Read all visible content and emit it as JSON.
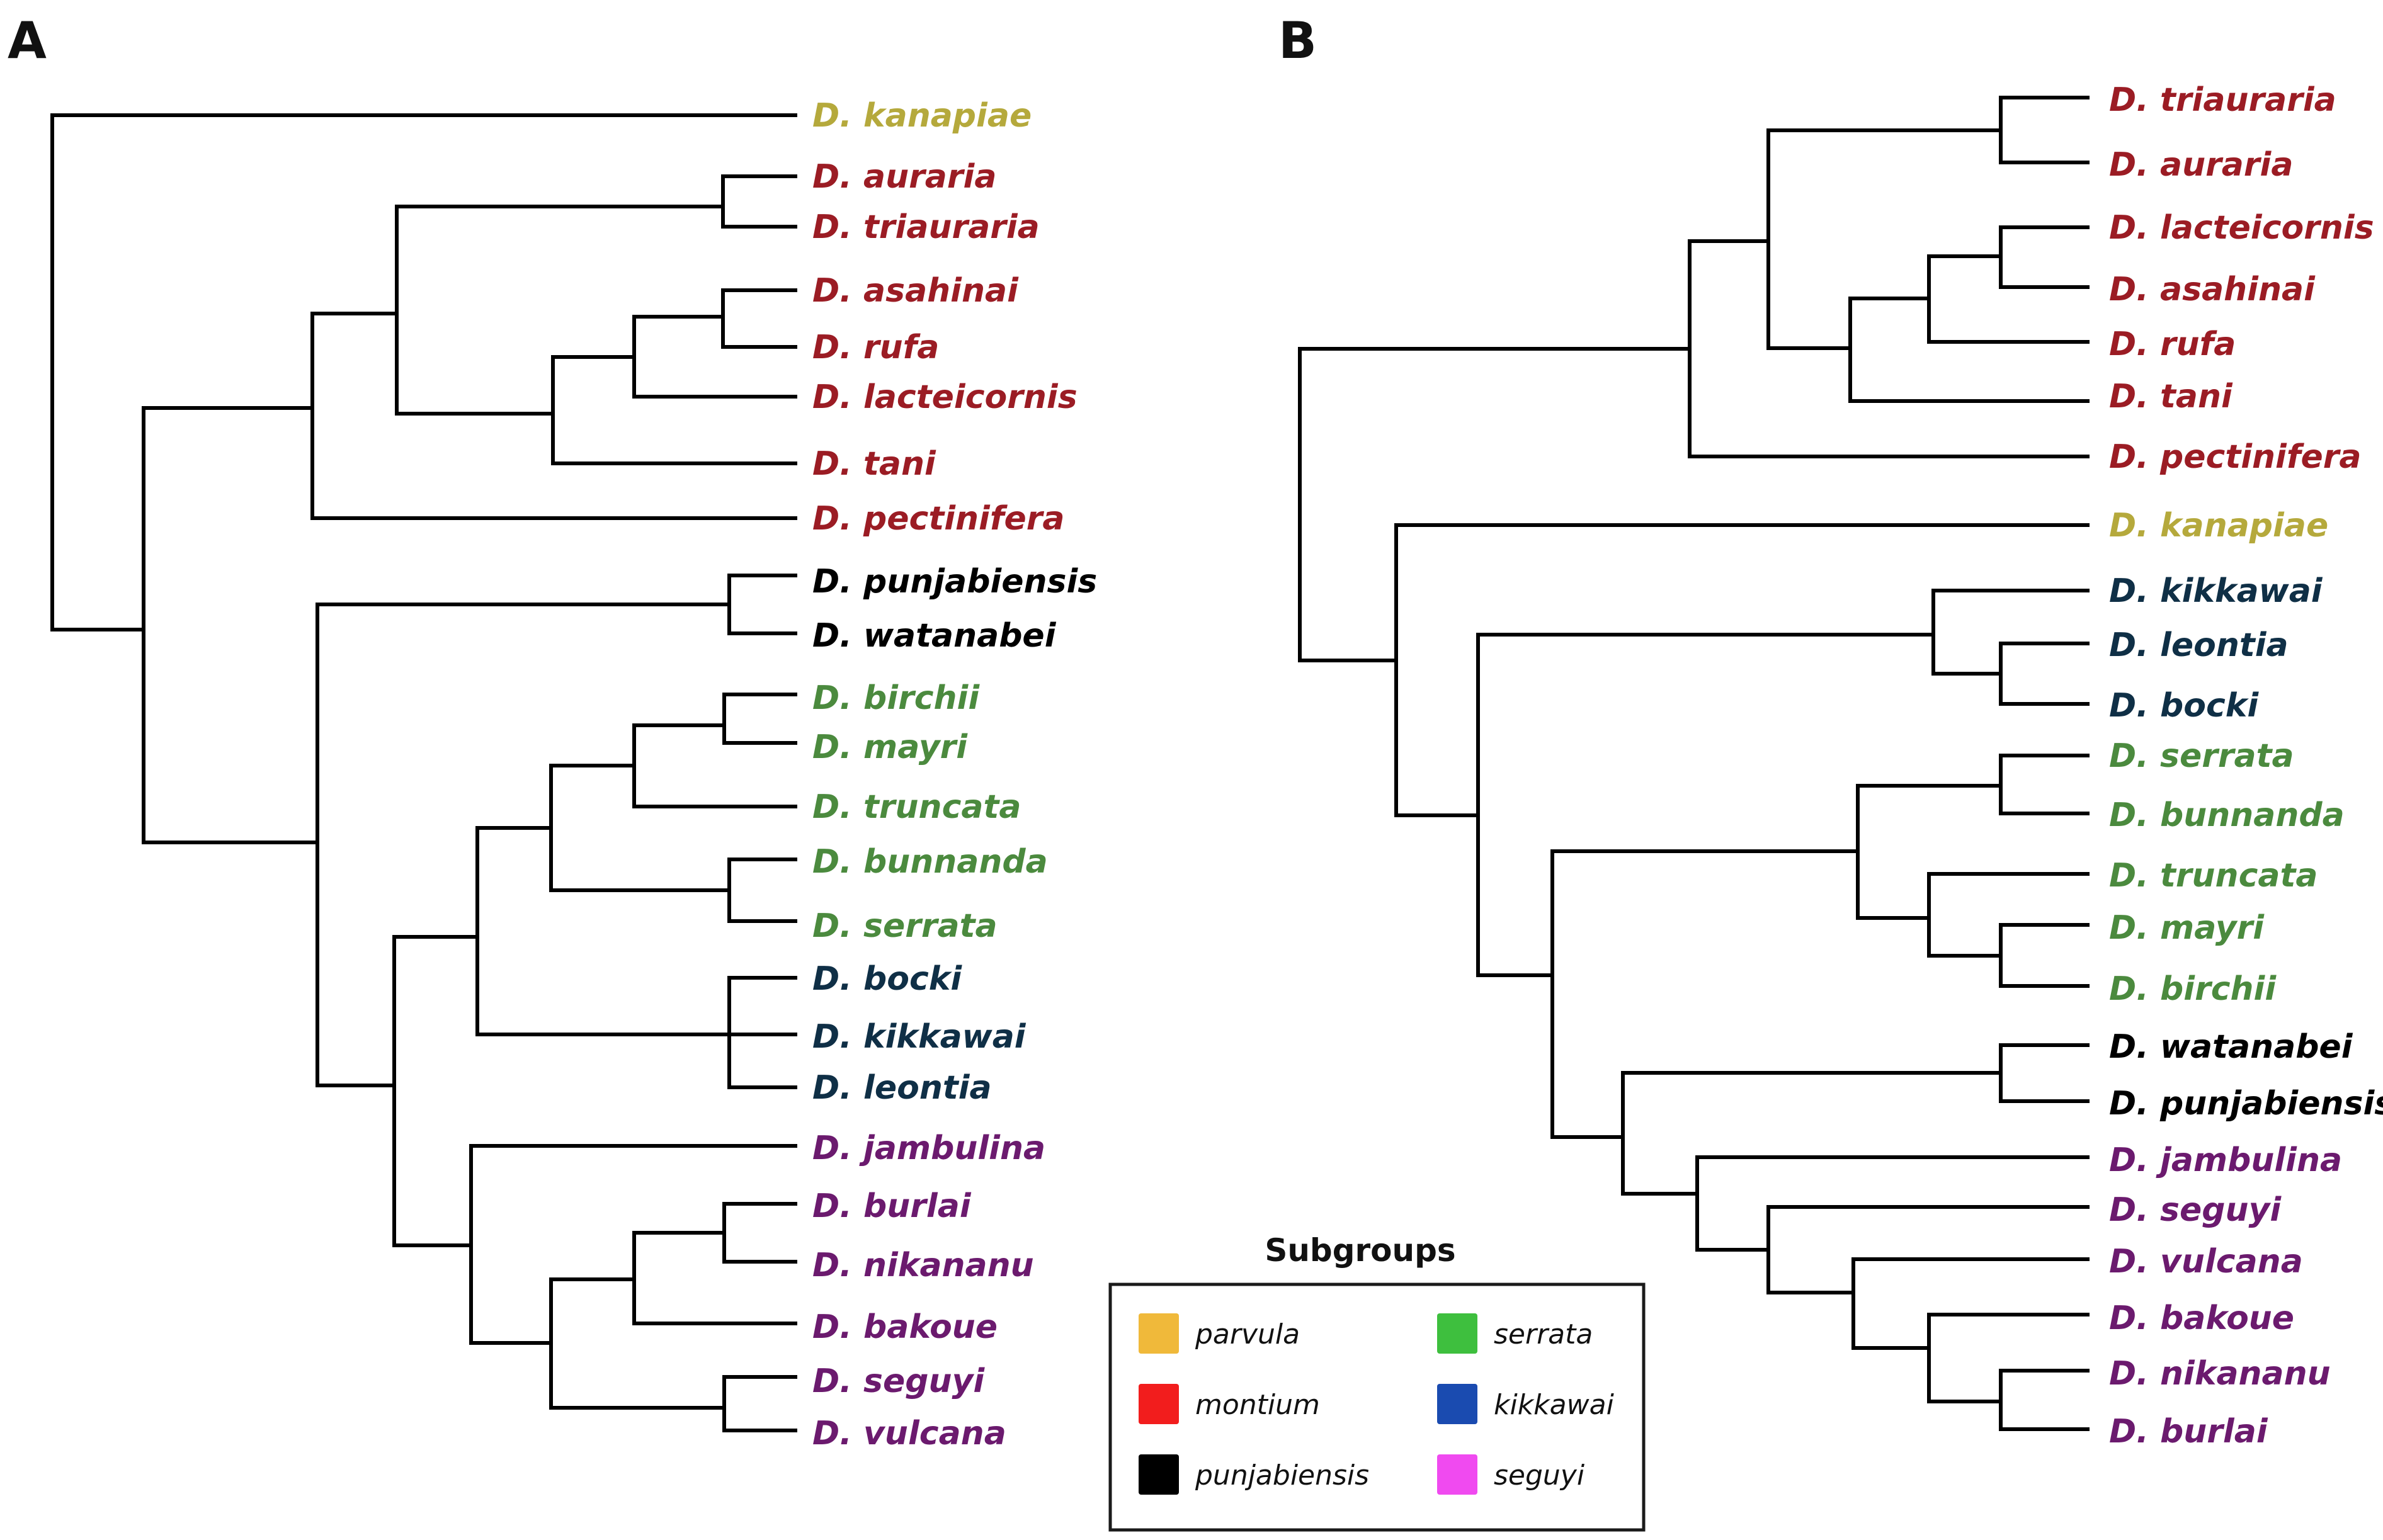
{
  "panels": [
    {
      "label": "A",
      "taxa": [
        {
          "name": "D. kanapiae",
          "group": "parvula"
        },
        {
          "name": "D. auraria",
          "group": "montium"
        },
        {
          "name": "D. triauraria",
          "group": "montium"
        },
        {
          "name": "D. asahinai",
          "group": "montium"
        },
        {
          "name": "D. rufa",
          "group": "montium"
        },
        {
          "name": "D. lacteicornis",
          "group": "montium"
        },
        {
          "name": "D. tani",
          "group": "montium"
        },
        {
          "name": "D. pectinifera",
          "group": "montium"
        },
        {
          "name": "D. punjabiensis",
          "group": "punjabiensis"
        },
        {
          "name": "D. watanabei",
          "group": "punjabiensis"
        },
        {
          "name": "D. birchii",
          "group": "serrata"
        },
        {
          "name": "D. mayri",
          "group": "serrata"
        },
        {
          "name": "D. truncata",
          "group": "serrata"
        },
        {
          "name": "D. bunnanda",
          "group": "serrata"
        },
        {
          "name": "D. serrata",
          "group": "serrata"
        },
        {
          "name": "D. bocki",
          "group": "kikkawai"
        },
        {
          "name": "D. kikkawai",
          "group": "kikkawai"
        },
        {
          "name": "D. leontia",
          "group": "kikkawai"
        },
        {
          "name": "D. jambulina",
          "group": "seguyi"
        },
        {
          "name": "D. burlai",
          "group": "seguyi"
        },
        {
          "name": "D. nikananu",
          "group": "seguyi"
        },
        {
          "name": "D. bakoue",
          "group": "seguyi"
        },
        {
          "name": "D. seguyi",
          "group": "seguyi"
        },
        {
          "name": "D. vulcana",
          "group": "seguyi"
        }
      ]
    },
    {
      "label": "B",
      "taxa": [
        {
          "name": "D. triauraria",
          "group": "montium"
        },
        {
          "name": "D. auraria",
          "group": "montium"
        },
        {
          "name": "D. lacteicornis",
          "group": "montium"
        },
        {
          "name": "D. asahinai",
          "group": "montium"
        },
        {
          "name": "D. rufa",
          "group": "montium"
        },
        {
          "name": "D. tani",
          "group": "montium"
        },
        {
          "name": "D. pectinifera",
          "group": "montium"
        },
        {
          "name": "D. kanapiae",
          "group": "parvula"
        },
        {
          "name": "D. kikkawai",
          "group": "kikkawai"
        },
        {
          "name": "D. leontia",
          "group": "kikkawai"
        },
        {
          "name": "D. bocki",
          "group": "kikkawai"
        },
        {
          "name": "D. serrata",
          "group": "serrata"
        },
        {
          "name": "D. bunnanda",
          "group": "serrata"
        },
        {
          "name": "D. truncata",
          "group": "serrata"
        },
        {
          "name": "D. mayri",
          "group": "serrata"
        },
        {
          "name": "D. birchii",
          "group": "serrata"
        },
        {
          "name": "D. watanabei",
          "group": "punjabiensis"
        },
        {
          "name": "D. punjabiensis",
          "group": "punjabiensis"
        },
        {
          "name": "D. jambulina",
          "group": "seguyi"
        },
        {
          "name": "D. seguyi",
          "group": "seguyi"
        },
        {
          "name": "D. vulcana",
          "group": "seguyi"
        },
        {
          "name": "D. bakoue",
          "group": "seguyi"
        },
        {
          "name": "D. nikananu",
          "group": "seguyi"
        },
        {
          "name": "D. burlai",
          "group": "seguyi"
        }
      ]
    }
  ],
  "label_colors": {
    "parvula": "#b5a93c",
    "montium": "#9b1c24",
    "punjabiensis": "#000000",
    "serrata": "#4b8a3e",
    "kikkawai": "#0f2f46",
    "seguyi": "#6b1a6e"
  },
  "legend": {
    "title": "Subgroups",
    "items": [
      {
        "label": "parvula",
        "swatch": "#f0b93a"
      },
      {
        "label": "serrata",
        "swatch": "#3ebf3e"
      },
      {
        "label": "montium",
        "swatch": "#f21d1d"
      },
      {
        "label": "kikkawai",
        "swatch": "#1a4bb0"
      },
      {
        "label": "punjabiensis",
        "swatch": "#000000"
      },
      {
        "label": "seguyi",
        "swatch": "#f04af0"
      }
    ]
  }
}
